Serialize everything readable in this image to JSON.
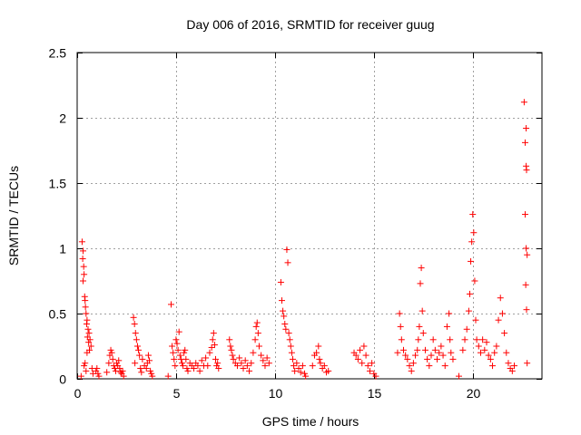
{
  "chart_data": {
    "type": "scatter",
    "title": "Day 006 of 2016, SRMTID for receiver guug",
    "xlabel": "GPS time / hours",
    "ylabel": "SRMTID / TECUs",
    "xlim": [
      0,
      23.5
    ],
    "ylim": [
      0,
      2.5
    ],
    "x_ticks": [
      0,
      5,
      10,
      15,
      20
    ],
    "y_ticks": [
      0,
      0.5,
      1,
      1.5,
      2,
      2.5
    ],
    "x_tick_labels": [
      "0",
      "5",
      "10",
      "15",
      "20"
    ],
    "y_tick_labels": [
      "0",
      "0.5",
      "1",
      "1.5",
      "2",
      "2.5"
    ],
    "grid": true,
    "marker": "+",
    "color": "#ff0000",
    "series": [
      {
        "name": "SRMTID",
        "points": [
          [
            0.25,
            1.05
          ],
          [
            0.3,
            0.98
          ],
          [
            0.28,
            0.92
          ],
          [
            0.33,
            0.86
          ],
          [
            0.35,
            0.8
          ],
          [
            0.3,
            0.75
          ],
          [
            0.38,
            0.63
          ],
          [
            0.4,
            0.6
          ],
          [
            0.42,
            0.55
          ],
          [
            0.45,
            0.5
          ],
          [
            0.5,
            0.45
          ],
          [
            0.48,
            0.42
          ],
          [
            0.55,
            0.38
          ],
          [
            0.6,
            0.35
          ],
          [
            0.52,
            0.32
          ],
          [
            0.65,
            0.3
          ],
          [
            0.58,
            0.28
          ],
          [
            0.7,
            0.25
          ],
          [
            0.62,
            0.22
          ],
          [
            0.5,
            0.2
          ],
          [
            0.4,
            0.12
          ],
          [
            0.45,
            0.06
          ],
          [
            0.35,
            0.1
          ],
          [
            0.75,
            0.08
          ],
          [
            0.8,
            0.04
          ],
          [
            0.2,
            0.02
          ],
          [
            0.95,
            0.06
          ],
          [
            1.05,
            0.04
          ],
          [
            1.1,
            0.02
          ],
          [
            1.0,
            0.08
          ],
          [
            1.5,
            0.05
          ],
          [
            1.6,
            0.12
          ],
          [
            1.65,
            0.18
          ],
          [
            1.7,
            0.22
          ],
          [
            1.75,
            0.2
          ],
          [
            1.8,
            0.15
          ],
          [
            1.85,
            0.1
          ],
          [
            1.9,
            0.08
          ],
          [
            1.95,
            0.06
          ],
          [
            2.0,
            0.12
          ],
          [
            2.05,
            0.1
          ],
          [
            2.1,
            0.14
          ],
          [
            2.15,
            0.08
          ],
          [
            2.2,
            0.05
          ],
          [
            2.25,
            0.04
          ],
          [
            2.3,
            0.06
          ],
          [
            2.35,
            0.02
          ],
          [
            2.85,
            0.47
          ],
          [
            2.9,
            0.42
          ],
          [
            2.95,
            0.35
          ],
          [
            3.0,
            0.3
          ],
          [
            3.05,
            0.25
          ],
          [
            3.1,
            0.22
          ],
          [
            3.15,
            0.18
          ],
          [
            2.92,
            0.12
          ],
          [
            3.2,
            0.08
          ],
          [
            3.25,
            0.05
          ],
          [
            3.3,
            0.15
          ],
          [
            3.4,
            0.1
          ],
          [
            3.5,
            0.08
          ],
          [
            3.55,
            0.12
          ],
          [
            3.6,
            0.18
          ],
          [
            3.65,
            0.14
          ],
          [
            3.7,
            0.06
          ],
          [
            3.75,
            0.04
          ],
          [
            3.8,
            0.02
          ],
          [
            4.6,
            0.02
          ],
          [
            4.75,
            0.57
          ],
          [
            4.8,
            0.25
          ],
          [
            4.85,
            0.2
          ],
          [
            4.9,
            0.15
          ],
          [
            4.95,
            0.1
          ],
          [
            5.0,
            0.3
          ],
          [
            5.05,
            0.27
          ],
          [
            5.1,
            0.22
          ],
          [
            5.15,
            0.36
          ],
          [
            5.2,
            0.18
          ],
          [
            5.25,
            0.15
          ],
          [
            5.3,
            0.12
          ],
          [
            5.35,
            0.1
          ],
          [
            5.4,
            0.2
          ],
          [
            5.45,
            0.22
          ],
          [
            5.5,
            0.15
          ],
          [
            5.55,
            0.08
          ],
          [
            5.6,
            0.06
          ],
          [
            5.7,
            0.12
          ],
          [
            5.8,
            0.1
          ],
          [
            5.9,
            0.08
          ],
          [
            6.0,
            0.12
          ],
          [
            6.1,
            0.1
          ],
          [
            6.2,
            0.06
          ],
          [
            6.3,
            0.14
          ],
          [
            6.4,
            0.1
          ],
          [
            6.5,
            0.16
          ],
          [
            6.6,
            0.1
          ],
          [
            6.7,
            0.2
          ],
          [
            6.8,
            0.24
          ],
          [
            6.85,
            0.3
          ],
          [
            6.9,
            0.35
          ],
          [
            6.95,
            0.26
          ],
          [
            7.0,
            0.15
          ],
          [
            7.05,
            0.1
          ],
          [
            7.1,
            0.12
          ],
          [
            7.15,
            0.08
          ],
          [
            7.7,
            0.3
          ],
          [
            7.75,
            0.25
          ],
          [
            7.8,
            0.22
          ],
          [
            7.85,
            0.18
          ],
          [
            7.9,
            0.15
          ],
          [
            8.0,
            0.12
          ],
          [
            8.1,
            0.1
          ],
          [
            8.2,
            0.16
          ],
          [
            8.3,
            0.12
          ],
          [
            8.4,
            0.08
          ],
          [
            8.5,
            0.14
          ],
          [
            8.6,
            0.1
          ],
          [
            8.7,
            0.06
          ],
          [
            8.8,
            0.12
          ],
          [
            8.9,
            0.2
          ],
          [
            9.0,
            0.3
          ],
          [
            9.05,
            0.4
          ],
          [
            9.1,
            0.43
          ],
          [
            9.15,
            0.35
          ],
          [
            9.2,
            0.25
          ],
          [
            9.3,
            0.18
          ],
          [
            9.4,
            0.14
          ],
          [
            9.5,
            0.1
          ],
          [
            9.6,
            0.16
          ],
          [
            9.7,
            0.12
          ],
          [
            10.3,
            0.74
          ],
          [
            10.35,
            0.6
          ],
          [
            10.4,
            0.52
          ],
          [
            10.45,
            0.48
          ],
          [
            10.5,
            0.42
          ],
          [
            10.55,
            0.38
          ],
          [
            10.6,
            0.99
          ],
          [
            10.65,
            0.89
          ],
          [
            10.7,
            0.35
          ],
          [
            10.75,
            0.3
          ],
          [
            10.8,
            0.25
          ],
          [
            10.85,
            0.2
          ],
          [
            10.9,
            0.15
          ],
          [
            10.95,
            0.1
          ],
          [
            11.0,
            0.06
          ],
          [
            11.1,
            0.12
          ],
          [
            11.2,
            0.08
          ],
          [
            11.3,
            0.05
          ],
          [
            11.4,
            0.1
          ],
          [
            11.5,
            0.04
          ],
          [
            11.55,
            0.02
          ],
          [
            11.9,
            0.1
          ],
          [
            12.0,
            0.18
          ],
          [
            12.1,
            0.2
          ],
          [
            12.2,
            0.25
          ],
          [
            12.25,
            0.15
          ],
          [
            12.3,
            0.12
          ],
          [
            12.4,
            0.08
          ],
          [
            12.5,
            0.1
          ],
          [
            12.6,
            0.05
          ],
          [
            12.7,
            0.06
          ],
          [
            14.0,
            0.2
          ],
          [
            14.1,
            0.18
          ],
          [
            14.2,
            0.15
          ],
          [
            14.3,
            0.22
          ],
          [
            14.4,
            0.12
          ],
          [
            14.5,
            0.25
          ],
          [
            14.6,
            0.18
          ],
          [
            14.7,
            0.1
          ],
          [
            14.8,
            0.06
          ],
          [
            14.9,
            0.12
          ],
          [
            15.0,
            0.04
          ],
          [
            15.1,
            0.02
          ],
          [
            16.2,
            0.2
          ],
          [
            16.3,
            0.5
          ],
          [
            16.35,
            0.4
          ],
          [
            16.4,
            0.3
          ],
          [
            16.5,
            0.22
          ],
          [
            16.6,
            0.18
          ],
          [
            16.7,
            0.15
          ],
          [
            16.8,
            0.1
          ],
          [
            16.9,
            0.06
          ],
          [
            17.0,
            0.12
          ],
          [
            17.1,
            0.18
          ],
          [
            17.2,
            0.22
          ],
          [
            17.25,
            0.3
          ],
          [
            17.3,
            0.4
          ],
          [
            17.35,
            0.73
          ],
          [
            17.4,
            0.85
          ],
          [
            17.45,
            0.52
          ],
          [
            17.5,
            0.35
          ],
          [
            17.6,
            0.22
          ],
          [
            17.7,
            0.15
          ],
          [
            17.8,
            0.1
          ],
          [
            17.9,
            0.18
          ],
          [
            18.0,
            0.3
          ],
          [
            18.1,
            0.22
          ],
          [
            18.2,
            0.15
          ],
          [
            18.3,
            0.2
          ],
          [
            18.4,
            0.25
          ],
          [
            18.5,
            0.18
          ],
          [
            18.6,
            0.1
          ],
          [
            18.7,
            0.4
          ],
          [
            18.8,
            0.5
          ],
          [
            18.85,
            0.3
          ],
          [
            18.9,
            0.2
          ],
          [
            19.0,
            0.15
          ],
          [
            19.3,
            0.02
          ],
          [
            19.5,
            0.22
          ],
          [
            19.6,
            0.3
          ],
          [
            19.7,
            0.38
          ],
          [
            19.8,
            0.52
          ],
          [
            19.85,
            0.65
          ],
          [
            19.9,
            0.9
          ],
          [
            19.95,
            1.05
          ],
          [
            20.0,
            1.26
          ],
          [
            20.05,
            1.12
          ],
          [
            20.1,
            0.75
          ],
          [
            20.15,
            0.45
          ],
          [
            20.2,
            0.3
          ],
          [
            20.3,
            0.25
          ],
          [
            20.4,
            0.2
          ],
          [
            20.5,
            0.3
          ],
          [
            20.6,
            0.22
          ],
          [
            20.7,
            0.28
          ],
          [
            20.8,
            0.18
          ],
          [
            20.9,
            0.15
          ],
          [
            21.0,
            0.1
          ],
          [
            21.1,
            0.2
          ],
          [
            21.2,
            0.25
          ],
          [
            21.3,
            0.45
          ],
          [
            21.4,
            0.62
          ],
          [
            21.5,
            0.5
          ],
          [
            21.6,
            0.35
          ],
          [
            21.7,
            0.2
          ],
          [
            21.8,
            0.12
          ],
          [
            21.9,
            0.08
          ],
          [
            22.0,
            0.06
          ],
          [
            22.1,
            0.1
          ],
          [
            22.6,
            2.12
          ],
          [
            22.7,
            1.92
          ],
          [
            22.65,
            1.81
          ],
          [
            22.7,
            1.63
          ],
          [
            22.72,
            1.6
          ],
          [
            22.65,
            1.26
          ],
          [
            22.7,
            1.0
          ],
          [
            22.75,
            0.95
          ],
          [
            22.68,
            0.72
          ],
          [
            22.72,
            0.53
          ],
          [
            22.75,
            0.12
          ]
        ]
      }
    ]
  }
}
